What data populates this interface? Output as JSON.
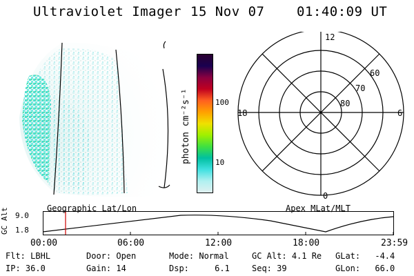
{
  "header": {
    "instrument": "Ultraviolet Imager",
    "date": "15 Nov 07",
    "time": "01:40:09 UT"
  },
  "image_panel": {
    "projection_label": "Geographic Lat/Lon"
  },
  "colorbar": {
    "unit_label": "photon cm⁻²s⁻¹",
    "scale": "log",
    "ticks": [
      "100",
      "10"
    ],
    "colors": [
      "#2a0030",
      "#1a0050",
      "#8a0040",
      "#c00020",
      "#ff6020",
      "#ffa000",
      "#f0e000",
      "#a0f000",
      "#40e040",
      "#00c0a0",
      "#40e0e0",
      "#b0f0f0",
      "#e0f0f0"
    ]
  },
  "polar_panel": {
    "projection_label": "Apex MLat/MLT",
    "mlt_labels": {
      "top": "12",
      "left": "18",
      "right": "6",
      "bottom": "0"
    },
    "lat_labels": [
      "60",
      "70",
      "80"
    ]
  },
  "altitude_track": {
    "axis_label": "GC Alt",
    "y_ticks": [
      "9.0",
      "1.8"
    ],
    "x_ticks": [
      "00:00",
      "06:00",
      "12:00",
      "18:00",
      "23:59"
    ],
    "current_time_marker_color": "#cc0000",
    "curve_color": "#000000"
  },
  "info": {
    "col1": {
      "flt_label": "Flt:",
      "flt": "LBHL",
      "ip_label": "IP:",
      "ip": "36.0"
    },
    "col2": {
      "door_label": "Door:",
      "door": "Open",
      "gain_label": "Gain:",
      "gain": "14"
    },
    "col3": {
      "mode_label": "Mode:",
      "mode": "Normal",
      "dsp_label": "Dsp:",
      "dsp": "6.1"
    },
    "col4": {
      "gcalt_label": "GC Alt:",
      "gcalt": "4.1 Re",
      "seq_label": "Seq:",
      "seq": "39"
    },
    "col5": {
      "glat_label": "GLat:",
      "glat": "-4.4",
      "glon_label": "GLon:",
      "glon": "66.0"
    }
  }
}
